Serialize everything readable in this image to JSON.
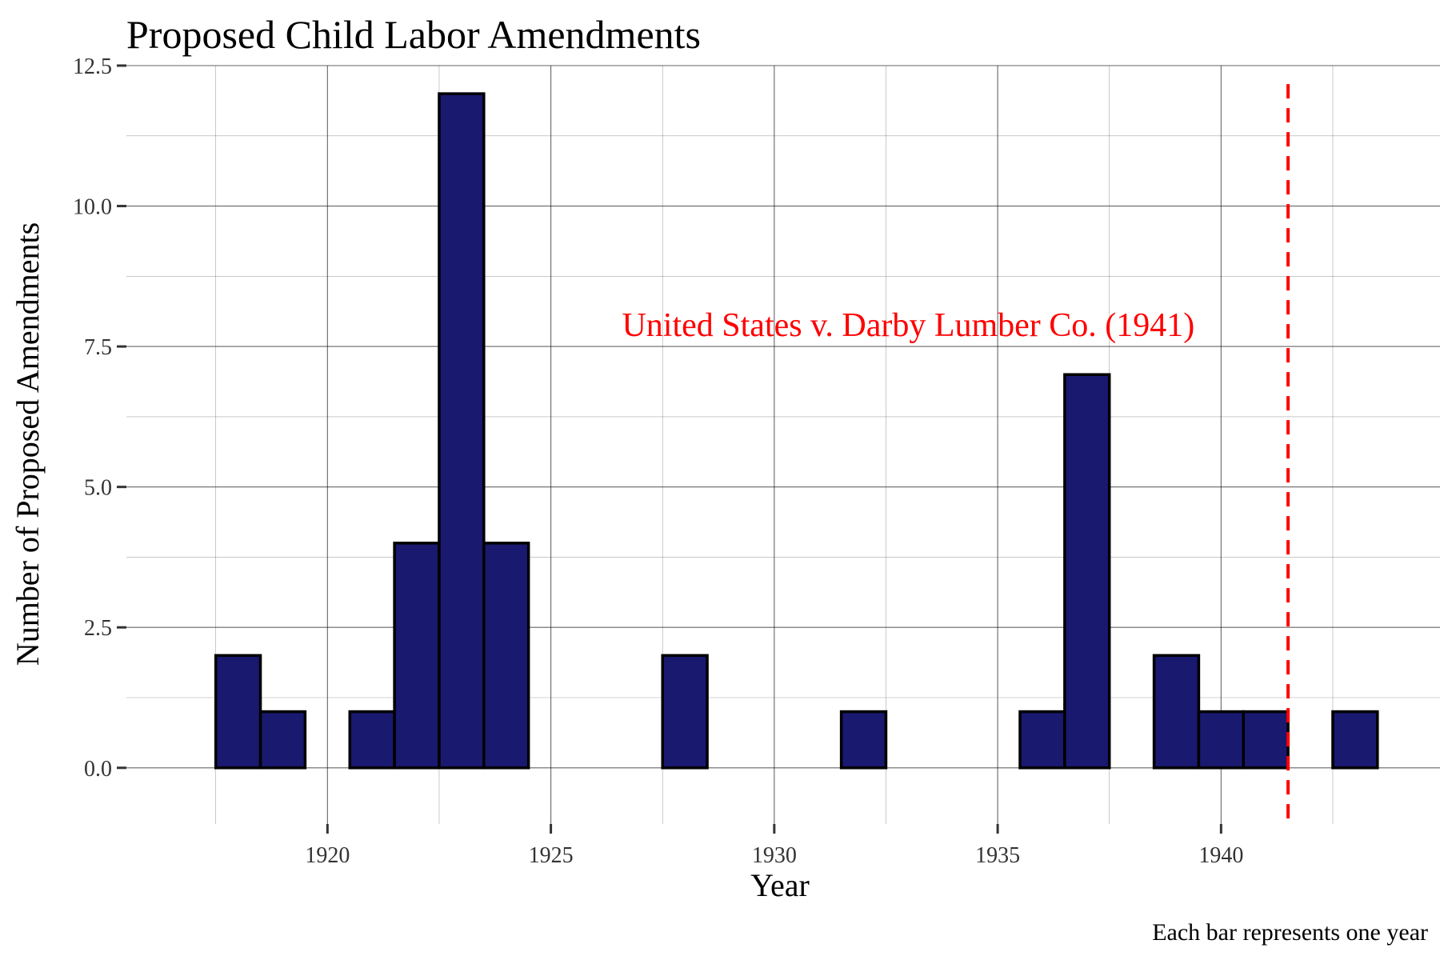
{
  "chart_data": {
    "type": "bar",
    "title": "Proposed Child Labor Amendments",
    "xlabel": "Year",
    "ylabel": "Number of Proposed Amendments",
    "caption": "Each bar represents one year",
    "x": [
      1918,
      1919,
      1920,
      1921,
      1922,
      1923,
      1924,
      1925,
      1926,
      1927,
      1928,
      1929,
      1930,
      1931,
      1932,
      1933,
      1934,
      1935,
      1936,
      1937,
      1938,
      1939,
      1940,
      1941,
      1942,
      1943
    ],
    "values": [
      2,
      1,
      0,
      1,
      4,
      12,
      4,
      0,
      0,
      0,
      2,
      0,
      0,
      0,
      1,
      0,
      0,
      0,
      1,
      7,
      0,
      2,
      1,
      1,
      0,
      1
    ],
    "xlim": [
      1915.5,
      1944.9
    ],
    "ylim": [
      -1.0,
      12.5
    ],
    "x_ticks": [
      1920,
      1925,
      1930,
      1935,
      1940
    ],
    "x_tick_labels": [
      "1920",
      "1925",
      "1930",
      "1935",
      "1940"
    ],
    "y_ticks": [
      0,
      2.5,
      5,
      7.5,
      10,
      12.5
    ],
    "y_tick_labels": [
      "0.0",
      "2.5",
      "5.0",
      "7.5",
      "10.0",
      "12.5"
    ],
    "bar_fill": "#191970",
    "bar_outline": "#000000",
    "grid": true,
    "annotation": {
      "text": "United States v. Darby Lumber Co. (1941)",
      "x": 1933.0,
      "y": 7.9,
      "color": "#ff0000"
    },
    "reference_line": {
      "x": 1941.5,
      "style": "dashed",
      "color": "#ff0000"
    }
  }
}
